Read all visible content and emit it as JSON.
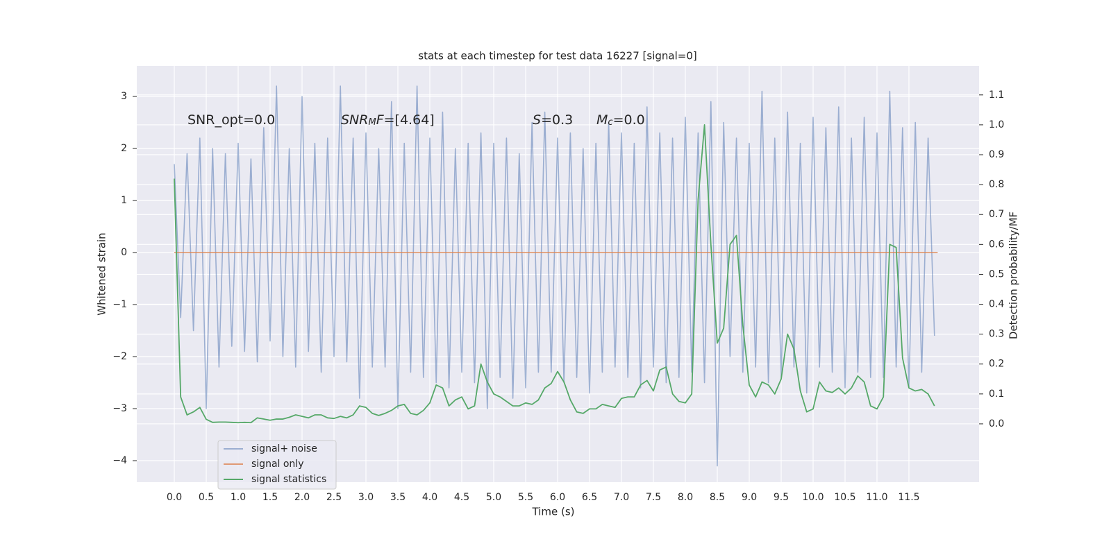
{
  "chart_data": {
    "type": "line",
    "title": "stats at each timestep for test data 16227 [signal=0]",
    "xlabel": "Time (s)",
    "ylabel": "Whitened strain",
    "y2label": "Detection probability/MF",
    "annotations": [
      {
        "parts": [
          {
            "text": "SNR_opt=0.0"
          }
        ]
      },
      {
        "parts": [
          {
            "text": "SNR",
            "style": "italic"
          },
          {
            "text": "M",
            "style": "italic-sub"
          },
          {
            "text": "F",
            "style": "italic"
          },
          {
            "text": "=[4.64]"
          }
        ]
      },
      {
        "parts": [
          {
            "text": "S",
            "style": "italic"
          },
          {
            "text": "=0.3"
          }
        ]
      },
      {
        "parts": [
          {
            "text": "M",
            "style": "italic"
          },
          {
            "text": "c",
            "style": "italic-sub"
          },
          {
            "text": "=0.0"
          }
        ]
      }
    ],
    "x": [
      0,
      0.1,
      0.2,
      0.3,
      0.4,
      0.5,
      0.6,
      0.7,
      0.8,
      0.9,
      1,
      1.1,
      1.2,
      1.3,
      1.4,
      1.5,
      1.6,
      1.7,
      1.8,
      1.9,
      2,
      2.1,
      2.2,
      2.3,
      2.4,
      2.5,
      2.6,
      2.7,
      2.8,
      2.9,
      3,
      3.1,
      3.2,
      3.3,
      3.4,
      3.5,
      3.6,
      3.7,
      3.8,
      3.9,
      4,
      4.1,
      4.2,
      4.3,
      4.4,
      4.5,
      4.6,
      4.7,
      4.8,
      4.9,
      5,
      5.1,
      5.2,
      5.3,
      5.4,
      5.5,
      5.6,
      5.7,
      5.8,
      5.9,
      6,
      6.1,
      6.2,
      6.3,
      6.4,
      6.5,
      6.6,
      6.7,
      6.8,
      6.9,
      7,
      7.1,
      7.2,
      7.3,
      7.4,
      7.5,
      7.6,
      7.7,
      7.8,
      7.9,
      8,
      8.1,
      8.2,
      8.3,
      8.4,
      8.5,
      8.6,
      8.7,
      8.8,
      8.9,
      9,
      9.1,
      9.2,
      9.3,
      9.4,
      9.5,
      9.6,
      9.7,
      9.8,
      9.9,
      10,
      10.1,
      10.2,
      10.3,
      10.4,
      10.5,
      10.6,
      10.7,
      10.8,
      10.9,
      11,
      11.1,
      11.2,
      11.3,
      11.4,
      11.5,
      11.6,
      11.7,
      11.8,
      11.9
    ],
    "series": [
      {
        "name": "signal+ noise",
        "color": "#4c72b0",
        "opacity": 0.5,
        "axis": "y",
        "values": [
          1.7,
          -1.25,
          1.9,
          -1.5,
          2.2,
          -3.0,
          2.0,
          -2.2,
          1.9,
          -1.8,
          2.1,
          -1.9,
          1.8,
          -2.1,
          2.4,
          -1.7,
          3.2,
          -2.0,
          2.0,
          -2.2,
          3.0,
          -1.9,
          2.1,
          -2.3,
          2.2,
          -2.0,
          3.2,
          -2.1,
          2.2,
          -2.8,
          2.3,
          -2.2,
          2.0,
          -2.2,
          2.9,
          -3.0,
          2.1,
          -2.3,
          3.2,
          -2.4,
          2.2,
          -2.5,
          2.7,
          -2.6,
          2.0,
          -2.3,
          2.1,
          -2.5,
          2.3,
          -3.0,
          2.1,
          -2.4,
          2.2,
          -2.8,
          1.9,
          -2.6,
          2.5,
          -2.3,
          2.7,
          -2.3,
          2.2,
          -2.5,
          2.3,
          -2.4,
          2.0,
          -2.7,
          2.1,
          -2.3,
          2.5,
          -2.2,
          2.3,
          -2.4,
          2.1,
          -2.6,
          2.8,
          -2.2,
          2.3,
          -2.5,
          2.2,
          -2.4,
          2.6,
          -2.3,
          2.3,
          -2.5,
          2.9,
          -4.1,
          2.5,
          -2.0,
          2.2,
          -2.3,
          2.1,
          -2.2,
          3.1,
          -2.5,
          2.2,
          -2.4,
          2.7,
          -2.2,
          2.1,
          -2.7,
          2.6,
          -2.2,
          2.4,
          -2.3,
          2.8,
          -2.6,
          2.2,
          -2.3,
          2.6,
          -2.4,
          2.3,
          -2.4,
          3.1,
          -2.2,
          2.4,
          -2.6,
          2.5,
          -2.3,
          2.2,
          -1.6
        ]
      },
      {
        "name": "signal only",
        "color": "#dd8452",
        "opacity": 0.8,
        "axis": "y",
        "x": [
          0,
          11.95
        ],
        "values": [
          0,
          0
        ]
      },
      {
        "name": "signal statistics",
        "color": "#55a868",
        "opacity": 1,
        "axis": "y2",
        "values": [
          0.82,
          0.09,
          0.03,
          0.04,
          0.055,
          0.015,
          0.005,
          0.006,
          0.006,
          0.005,
          0.004,
          0.005,
          0.004,
          0.02,
          0.016,
          0.012,
          0.016,
          0.016,
          0.022,
          0.03,
          0.025,
          0.02,
          0.03,
          0.03,
          0.02,
          0.018,
          0.025,
          0.02,
          0.03,
          0.06,
          0.055,
          0.035,
          0.028,
          0.035,
          0.045,
          0.06,
          0.065,
          0.035,
          0.03,
          0.045,
          0.07,
          0.13,
          0.12,
          0.06,
          0.08,
          0.09,
          0.05,
          0.06,
          0.2,
          0.14,
          0.1,
          0.09,
          0.075,
          0.06,
          0.06,
          0.07,
          0.065,
          0.08,
          0.12,
          0.135,
          0.175,
          0.14,
          0.08,
          0.04,
          0.035,
          0.05,
          0.05,
          0.065,
          0.06,
          0.055,
          0.085,
          0.09,
          0.09,
          0.13,
          0.145,
          0.11,
          0.18,
          0.19,
          0.1,
          0.075,
          0.07,
          0.1,
          0.75,
          1.0,
          0.6,
          0.27,
          0.32,
          0.6,
          0.63,
          0.33,
          0.13,
          0.09,
          0.14,
          0.13,
          0.1,
          0.15,
          0.3,
          0.25,
          0.11,
          0.04,
          0.05,
          0.14,
          0.11,
          0.105,
          0.12,
          0.1,
          0.12,
          0.16,
          0.14,
          0.06,
          0.05,
          0.09,
          0.6,
          0.59,
          0.22,
          0.12,
          0.11,
          0.115,
          0.1,
          0.06
        ]
      }
    ],
    "xlim": [
      -0.587,
      12.598
    ],
    "ylim": [
      -4.413,
      3.587
    ],
    "y2lim": [
      -0.195,
      1.197
    ],
    "xticks": [
      {
        "value": 0,
        "label": "0.0"
      },
      {
        "value": 0.5,
        "label": "0.5"
      },
      {
        "value": 1,
        "label": "1.0"
      },
      {
        "value": 1.5,
        "label": "1.5"
      },
      {
        "value": 2,
        "label": "2.0"
      },
      {
        "value": 2.5,
        "label": "2.5"
      },
      {
        "value": 3,
        "label": "3.0"
      },
      {
        "value": 3.5,
        "label": "3.5"
      },
      {
        "value": 4,
        "label": "4.0"
      },
      {
        "value": 4.5,
        "label": "4.5"
      },
      {
        "value": 5,
        "label": "5.0"
      },
      {
        "value": 5.5,
        "label": "5.5"
      },
      {
        "value": 6,
        "label": "6.0"
      },
      {
        "value": 6.5,
        "label": "6.5"
      },
      {
        "value": 7,
        "label": "7.0"
      },
      {
        "value": 7.5,
        "label": "7.5"
      },
      {
        "value": 8,
        "label": "8.0"
      },
      {
        "value": 8.5,
        "label": "8.5"
      },
      {
        "value": 9,
        "label": "9.0"
      },
      {
        "value": 9.5,
        "label": "9.5"
      },
      {
        "value": 10,
        "label": "10.0"
      },
      {
        "value": 10.5,
        "label": "10.5"
      },
      {
        "value": 11,
        "label": "11.0"
      },
      {
        "value": 11.5,
        "label": "11.5"
      }
    ],
    "yticks": [
      {
        "value": -4,
        "label": "−4"
      },
      {
        "value": -3,
        "label": "−3"
      },
      {
        "value": -2,
        "label": "−2"
      },
      {
        "value": -1,
        "label": "−1"
      },
      0,
      1,
      2,
      3
    ],
    "y2ticks": [
      {
        "value": 0,
        "label": "0.0"
      },
      {
        "value": 0.1,
        "label": "0.1"
      },
      {
        "value": 0.2,
        "label": "0.2"
      },
      {
        "value": 0.3,
        "label": "0.3"
      },
      {
        "value": 0.4,
        "label": "0.4"
      },
      {
        "value": 0.5,
        "label": "0.5"
      },
      {
        "value": 0.6,
        "label": "0.6"
      },
      {
        "value": 0.7,
        "label": "0.7"
      },
      {
        "value": 0.8,
        "label": "0.8"
      },
      {
        "value": 0.9,
        "label": "0.9"
      },
      {
        "value": 1,
        "label": "1.0"
      },
      {
        "value": 1.1,
        "label": "1.1"
      }
    ],
    "grid": true,
    "legend": "lower left"
  }
}
